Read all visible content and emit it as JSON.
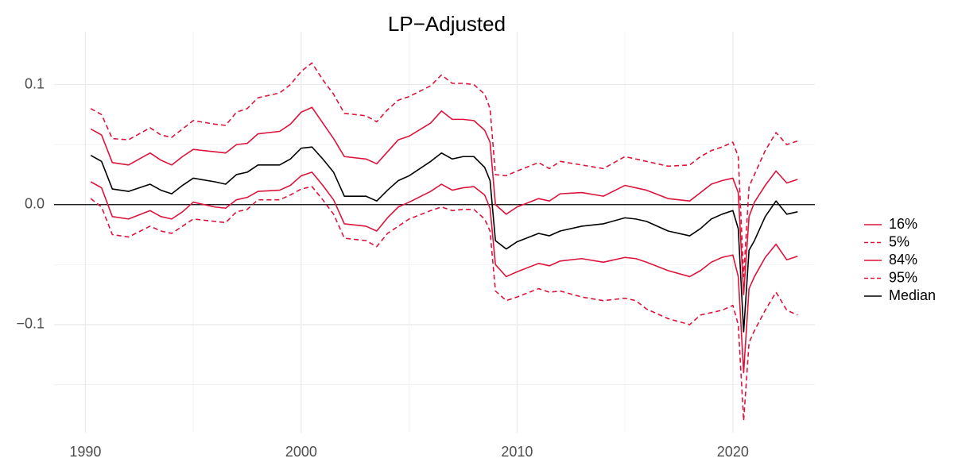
{
  "chart_data": {
    "type": "line",
    "title": "LP−Adjusted",
    "x": [
      1990.25,
      1990.75,
      1991.25,
      1992,
      1993,
      1993.5,
      1994,
      1994.5,
      1995,
      1996,
      1996.5,
      1997,
      1997.5,
      1998,
      1999,
      1999.5,
      2000,
      2000.5,
      2001,
      2001.5,
      2002,
      2003,
      2003.5,
      2004,
      2004.5,
      2005,
      2006,
      2006.5,
      2007,
      2007.5,
      2008,
      2008.5,
      2008.75,
      2009,
      2009.5,
      2010,
      2011,
      2011.5,
      2012,
      2013,
      2014,
      2015,
      2015.5,
      2016,
      2017,
      2018,
      2018.5,
      2019,
      2019.5,
      2020,
      2020.25,
      2020.5,
      2020.75,
      2021,
      2021.5,
      2022,
      2022.5,
      2023
    ],
    "series": [
      {
        "name": "16%",
        "color": "#dc143c",
        "dashed": false,
        "values": [
          0.019,
          0.014,
          -0.01,
          -0.012,
          -0.005,
          -0.01,
          -0.012,
          -0.006,
          0.002,
          -0.002,
          -0.003,
          0.004,
          0.006,
          0.011,
          0.012,
          0.016,
          0.024,
          0.027,
          0.016,
          0.004,
          -0.016,
          -0.018,
          -0.022,
          -0.011,
          -0.002,
          0.002,
          0.011,
          0.017,
          0.012,
          0.014,
          0.015,
          0.008,
          -0.003,
          -0.05,
          -0.06,
          -0.056,
          -0.049,
          -0.051,
          -0.047,
          -0.045,
          -0.048,
          -0.044,
          -0.045,
          -0.048,
          -0.055,
          -0.06,
          -0.055,
          -0.048,
          -0.044,
          -0.042,
          -0.06,
          -0.14,
          -0.07,
          -0.06,
          -0.044,
          -0.033,
          -0.046,
          -0.043
        ]
      },
      {
        "name": "5%",
        "color": "#dc143c",
        "dashed": true,
        "values": [
          0.005,
          -0.002,
          -0.025,
          -0.027,
          -0.018,
          -0.022,
          -0.024,
          -0.018,
          -0.012,
          -0.014,
          -0.015,
          -0.006,
          -0.004,
          0.004,
          0.004,
          0.008,
          0.013,
          0.015,
          0.004,
          -0.008,
          -0.028,
          -0.03,
          -0.035,
          -0.024,
          -0.018,
          -0.012,
          -0.005,
          -0.002,
          -0.005,
          -0.004,
          -0.004,
          -0.012,
          -0.022,
          -0.072,
          -0.08,
          -0.077,
          -0.07,
          -0.073,
          -0.072,
          -0.077,
          -0.08,
          -0.078,
          -0.08,
          -0.087,
          -0.095,
          -0.1,
          -0.092,
          -0.09,
          -0.088,
          -0.084,
          -0.1,
          -0.18,
          -0.115,
          -0.105,
          -0.088,
          -0.073,
          -0.088,
          -0.092
        ]
      },
      {
        "name": "84%",
        "color": "#dc143c",
        "dashed": false,
        "values": [
          0.063,
          0.058,
          0.035,
          0.033,
          0.043,
          0.037,
          0.033,
          0.04,
          0.046,
          0.044,
          0.043,
          0.05,
          0.051,
          0.059,
          0.061,
          0.067,
          0.077,
          0.081,
          0.068,
          0.055,
          0.04,
          0.038,
          0.034,
          0.044,
          0.054,
          0.057,
          0.068,
          0.078,
          0.071,
          0.071,
          0.07,
          0.062,
          0.052,
          0.0,
          -0.008,
          -0.002,
          0.005,
          0.003,
          0.009,
          0.01,
          0.007,
          0.016,
          0.014,
          0.012,
          0.005,
          0.003,
          0.01,
          0.017,
          0.02,
          0.022,
          0.01,
          -0.075,
          -0.01,
          0.002,
          0.016,
          0.028,
          0.018,
          0.021
        ]
      },
      {
        "name": "95%",
        "color": "#dc143c",
        "dashed": true,
        "values": [
          0.08,
          0.075,
          0.055,
          0.054,
          0.064,
          0.058,
          0.056,
          0.063,
          0.07,
          0.067,
          0.066,
          0.077,
          0.08,
          0.089,
          0.093,
          0.1,
          0.111,
          0.118,
          0.104,
          0.092,
          0.076,
          0.074,
          0.069,
          0.079,
          0.087,
          0.09,
          0.099,
          0.108,
          0.101,
          0.101,
          0.1,
          0.092,
          0.08,
          0.025,
          0.024,
          0.028,
          0.035,
          0.03,
          0.036,
          0.033,
          0.03,
          0.04,
          0.038,
          0.036,
          0.032,
          0.033,
          0.04,
          0.045,
          0.048,
          0.052,
          0.04,
          -0.06,
          0.015,
          0.025,
          0.045,
          0.06,
          0.05,
          0.053
        ]
      },
      {
        "name": "Median",
        "color": "#000000",
        "dashed": false,
        "values": [
          0.041,
          0.036,
          0.013,
          0.011,
          0.017,
          0.012,
          0.009,
          0.016,
          0.022,
          0.019,
          0.017,
          0.025,
          0.027,
          0.033,
          0.033,
          0.038,
          0.047,
          0.048,
          0.038,
          0.027,
          0.007,
          0.007,
          0.003,
          0.012,
          0.02,
          0.024,
          0.036,
          0.043,
          0.038,
          0.04,
          0.04,
          0.031,
          0.02,
          -0.03,
          -0.037,
          -0.031,
          -0.024,
          -0.026,
          -0.022,
          -0.018,
          -0.016,
          -0.011,
          -0.012,
          -0.014,
          -0.022,
          -0.026,
          -0.02,
          -0.012,
          -0.008,
          -0.005,
          -0.02,
          -0.106,
          -0.038,
          -0.03,
          -0.01,
          0.003,
          -0.008,
          -0.006
        ]
      }
    ],
    "xlim": [
      1988.55,
      2023.8
    ],
    "xticks": [
      1990,
      2000,
      2010,
      2020
    ],
    "minor_xticks": [
      1995,
      2005,
      2015
    ],
    "ylim": [
      -0.19,
      0.144
    ],
    "yticks": [
      {
        "value": -0.1,
        "label": "−0.1"
      },
      {
        "value": 0,
        "label": "0.0"
      },
      0.1
    ],
    "minor_yticks": [
      -0.15,
      -0.05,
      0.05
    ],
    "hline": 0,
    "grid": true,
    "legend": "right"
  }
}
